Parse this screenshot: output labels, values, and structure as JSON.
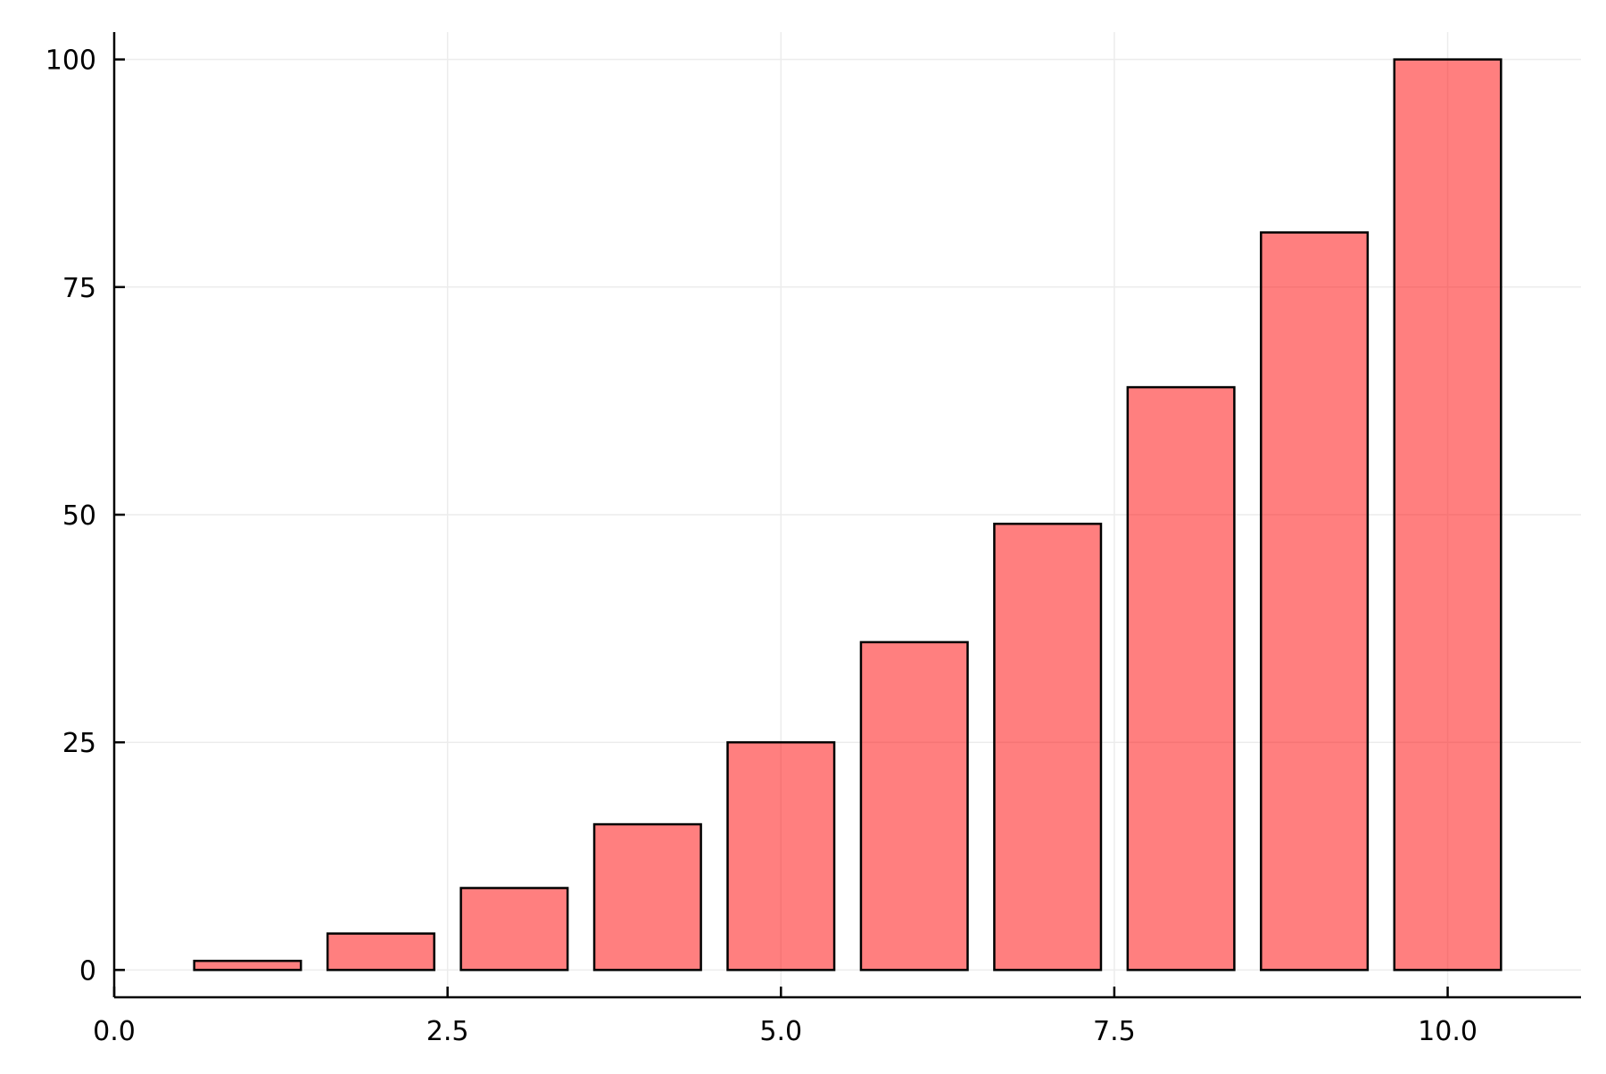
{
  "chart_data": {
    "type": "bar",
    "title": "",
    "xlabel": "",
    "ylabel": "",
    "x": [
      1,
      2,
      3,
      4,
      5,
      6,
      7,
      8,
      9,
      10
    ],
    "values": [
      1,
      4,
      9,
      16,
      25,
      36,
      49,
      64,
      81,
      100
    ],
    "xlim": [
      0,
      11
    ],
    "ylim": [
      -3,
      103
    ],
    "x_ticks": [
      0,
      2.5,
      5,
      7.5,
      10
    ],
    "x_tick_labels": [
      "0.0",
      "2.5",
      "5.0",
      "7.5",
      "10.0"
    ],
    "y_ticks": [
      0,
      25,
      50,
      75,
      100
    ],
    "y_tick_labels": [
      "0",
      "25",
      "50",
      "75",
      "100"
    ],
    "bar_width": 0.8,
    "grid": true,
    "legend": "none",
    "colors": {
      "bar_fill": "#ff0000",
      "bar_fill_opacity": 0.5,
      "bar_stroke": "#000000",
      "grid": "#ececec",
      "axis": "#000000"
    }
  }
}
